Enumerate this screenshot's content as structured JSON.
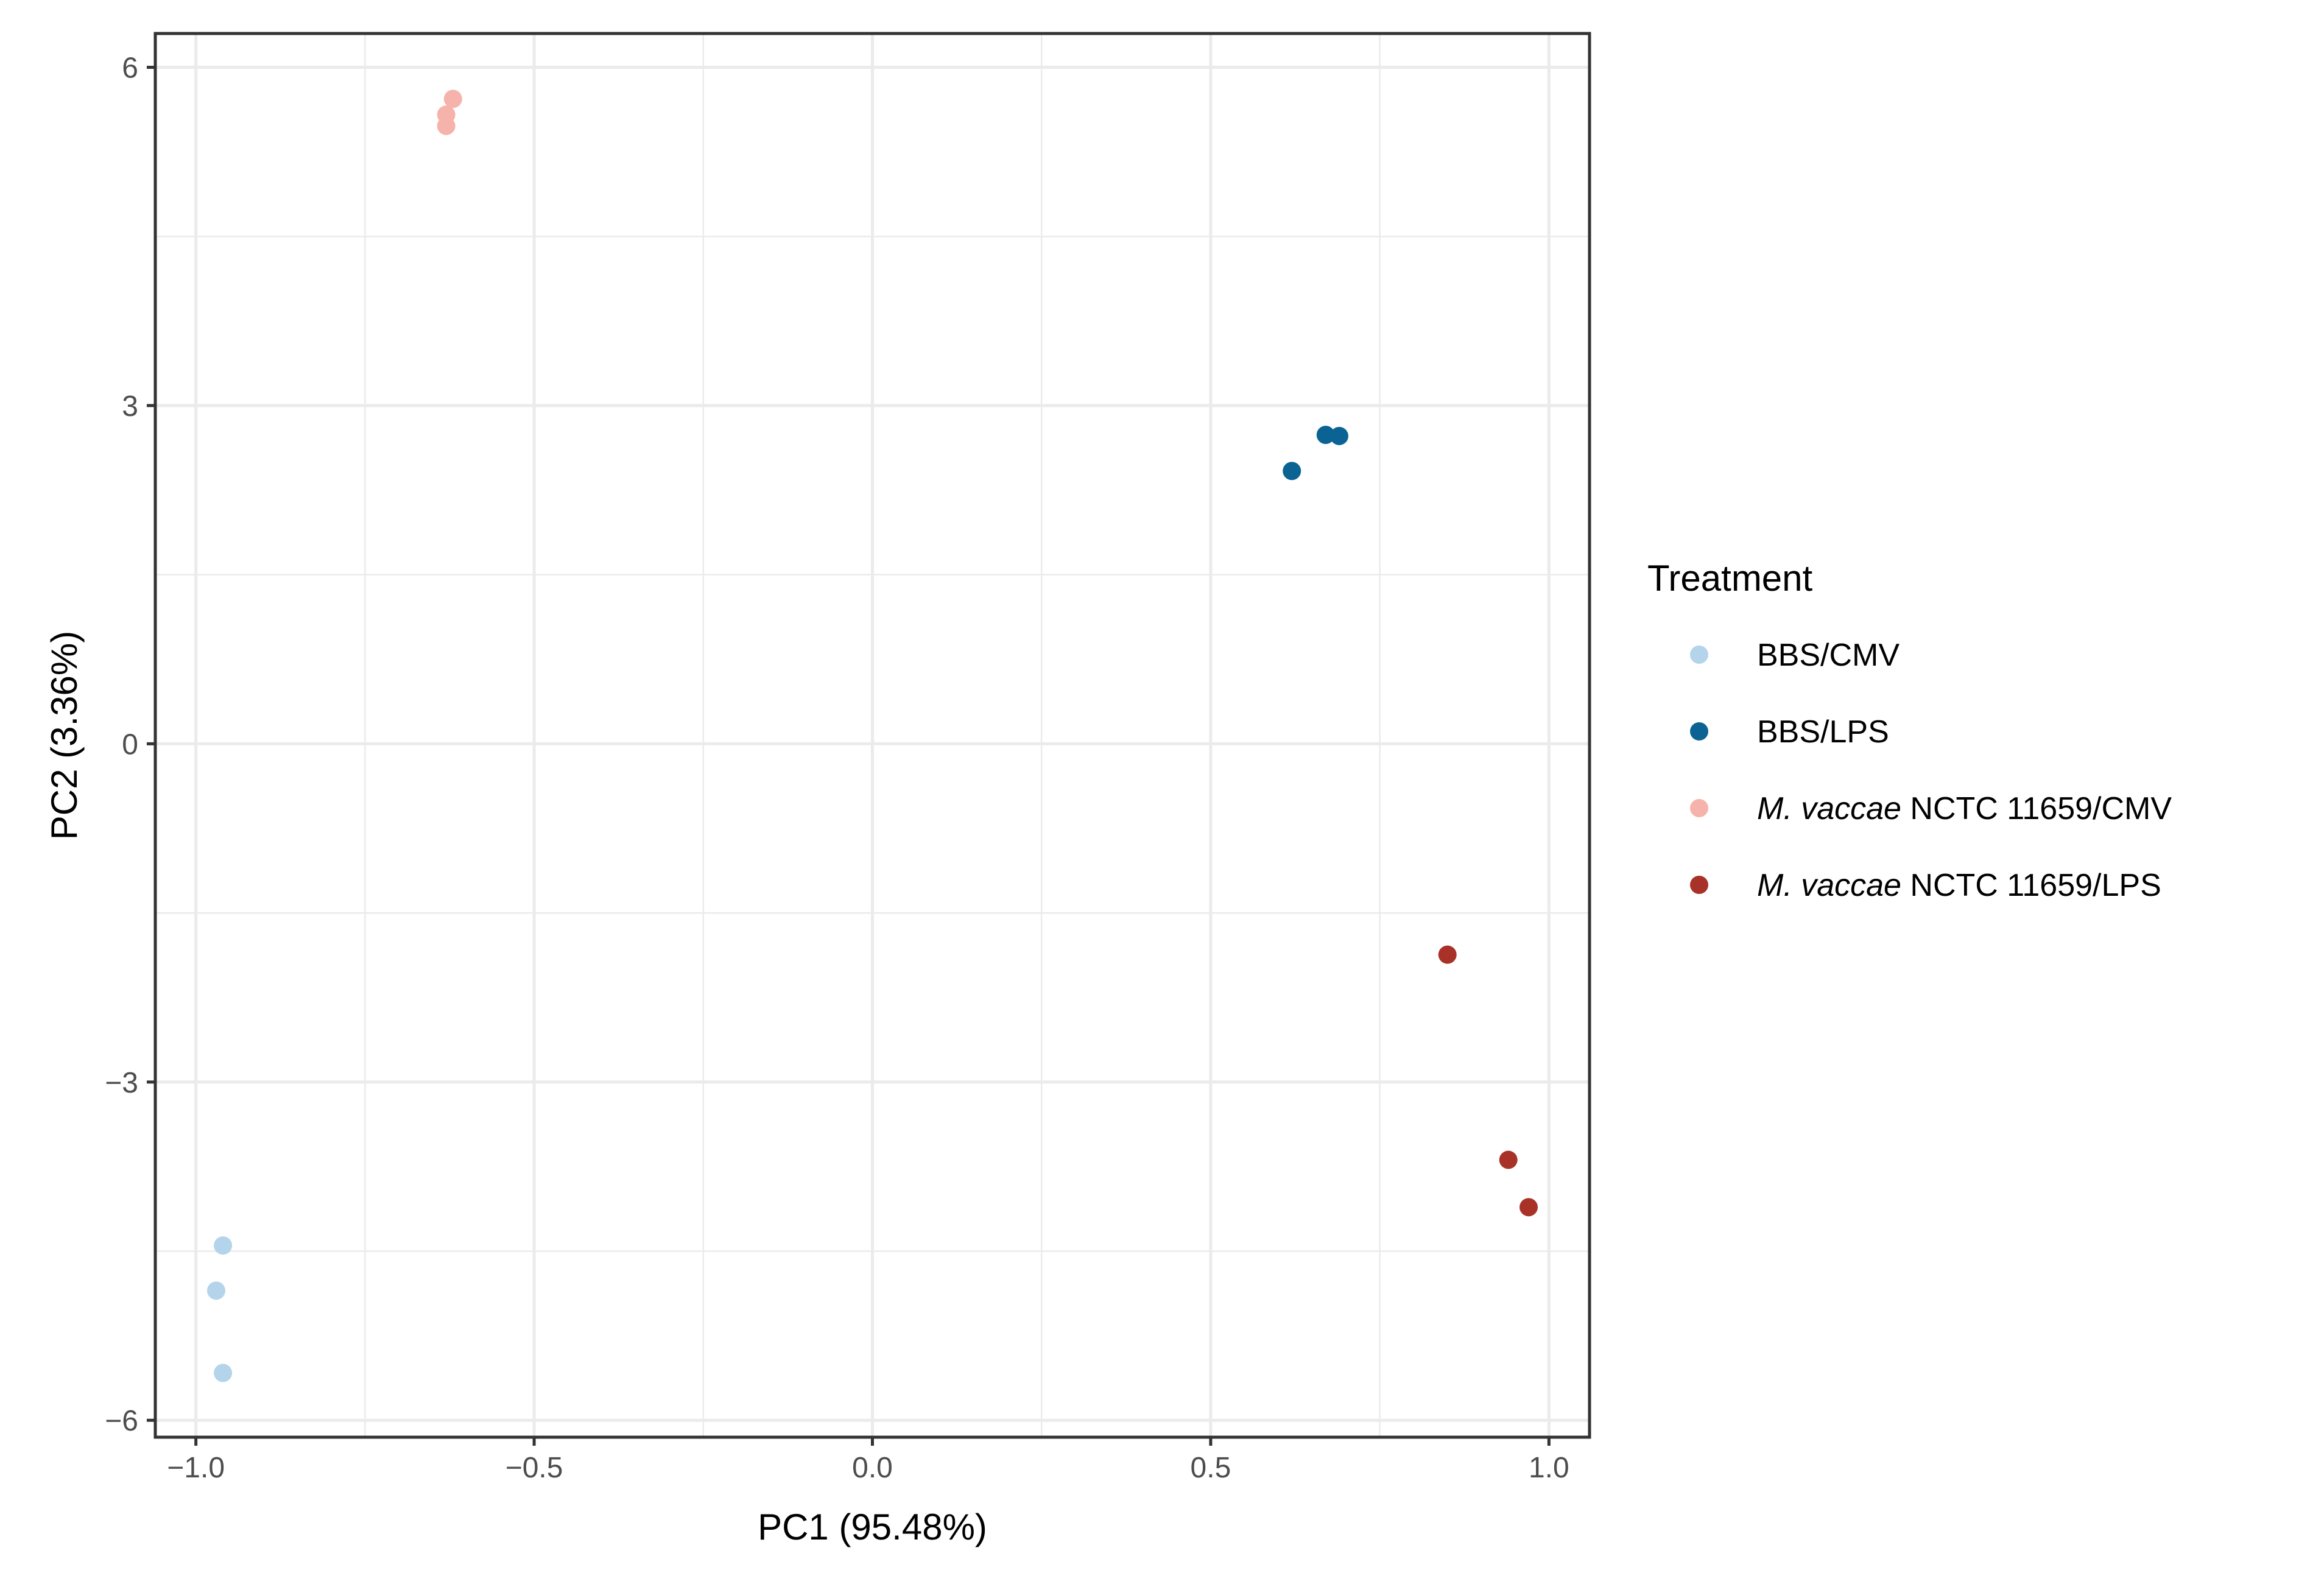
{
  "chart_data": {
    "type": "scatter",
    "title": "",
    "xlabel": "PC1 (95.48%)",
    "ylabel": "PC2 (3.36%)",
    "xlim": [
      -1.06,
      1.06
    ],
    "ylim": [
      -6.15,
      6.3
    ],
    "xticks": [
      -1.0,
      -0.5,
      0.0,
      0.5,
      1.0
    ],
    "xtick_labels": [
      "−1.0",
      "−0.5",
      "0.0",
      "0.5",
      "1.0"
    ],
    "yticks": [
      -6,
      -3,
      0,
      3,
      6
    ],
    "ytick_labels": [
      "−6",
      "−3",
      "0",
      "3",
      "6"
    ],
    "grid": true,
    "legend": {
      "title": "Treatment",
      "position": "right"
    },
    "series": [
      {
        "name": "BBS/CMV",
        "label_italic": "",
        "label_rest": "BBS/CMV",
        "color": "#b3d4ea",
        "points": [
          {
            "x": -0.96,
            "y": -4.45
          },
          {
            "x": -0.97,
            "y": -4.85
          },
          {
            "x": -0.96,
            "y": -5.58
          }
        ]
      },
      {
        "name": "BBS/LPS",
        "label_italic": "",
        "label_rest": "BBS/LPS",
        "color": "#0b6394",
        "points": [
          {
            "x": 0.62,
            "y": 2.42
          },
          {
            "x": 0.67,
            "y": 2.74
          },
          {
            "x": 0.69,
            "y": 2.73
          }
        ]
      },
      {
        "name": "M. vaccae NCTC 11659/CMV",
        "label_italic": "M. vaccae",
        "label_rest": " NCTC 11659/CMV",
        "color": "#f6b3ab",
        "points": [
          {
            "x": -0.63,
            "y": 5.48
          },
          {
            "x": -0.63,
            "y": 5.58
          },
          {
            "x": -0.62,
            "y": 5.72
          }
        ]
      },
      {
        "name": "M. vaccae NCTC 11659/LPS",
        "label_italic": "M. vaccae",
        "label_rest": " NCTC 11659/LPS",
        "color": "#a83228",
        "points": [
          {
            "x": 0.85,
            "y": -1.87
          },
          {
            "x": 0.94,
            "y": -3.69
          },
          {
            "x": 0.97,
            "y": -4.11
          }
        ]
      }
    ]
  }
}
